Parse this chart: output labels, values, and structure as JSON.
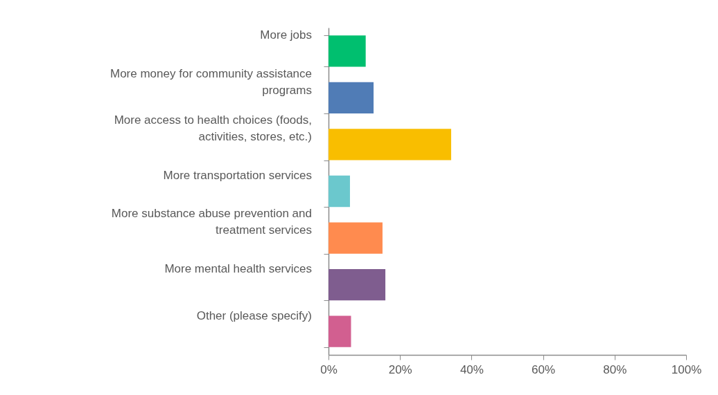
{
  "chart_data": {
    "type": "bar",
    "orientation": "horizontal",
    "categories": [
      "More jobs",
      "More money for community assistance programs",
      "More access to health choices (foods, activities, stores, etc.)",
      "More transportation services",
      "More substance abuse prevention and treatment services",
      "More mental health services",
      "Other (please specify)"
    ],
    "values": [
      10.4,
      12.6,
      34.3,
      6.0,
      15.1,
      15.9,
      6.3
    ],
    "colors": [
      "#00bf6f",
      "#507cb6",
      "#f9be00",
      "#6bc8cd",
      "#ff8b4f",
      "#7f5d8f",
      "#d25f90"
    ],
    "xlim": [
      0,
      100
    ],
    "xticks": [
      {
        "value": 0,
        "label": "0%"
      },
      {
        "value": 20,
        "label": "20%"
      },
      {
        "value": 40,
        "label": "40%"
      },
      {
        "value": 60,
        "label": "60%"
      },
      {
        "value": 80,
        "label": "80%"
      },
      {
        "value": 100,
        "label": "100%"
      }
    ],
    "grid": false
  }
}
